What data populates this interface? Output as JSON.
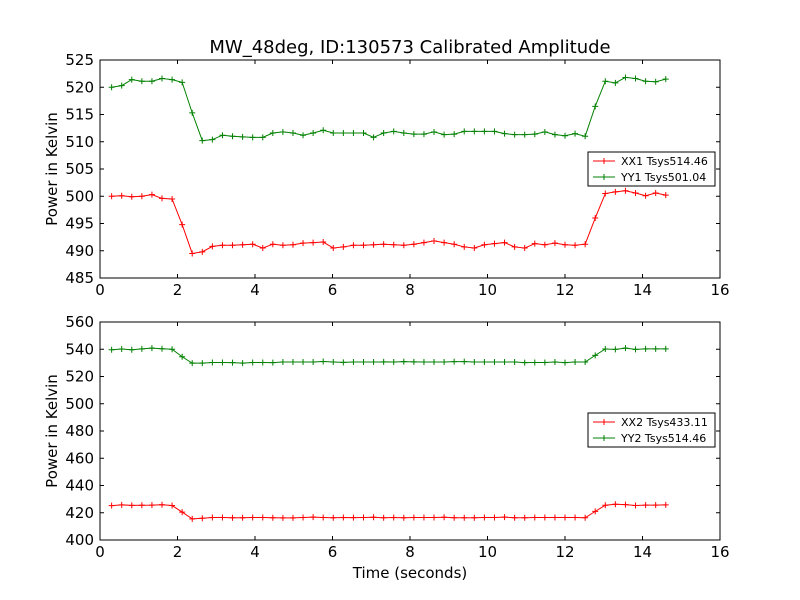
{
  "chart_data": [
    {
      "type": "line",
      "title": "MW_48deg, ID:130573 Calibrated Amplitude",
      "xlabel": "",
      "ylabel": "Power in Kelvin",
      "xlim": [
        0,
        16
      ],
      "ylim": [
        485,
        525
      ],
      "xticks": [
        0,
        2,
        4,
        6,
        8,
        10,
        12,
        14,
        16
      ],
      "yticks": [
        485,
        490,
        495,
        500,
        505,
        510,
        515,
        520,
        525
      ],
      "xtick_labels": [
        "0",
        "2",
        "4",
        "6",
        "8",
        "10",
        "12",
        "14",
        "16"
      ],
      "ytick_labels": [
        "485",
        "490",
        "495",
        "500",
        "505",
        "510",
        "515",
        "520",
        "525"
      ],
      "grid": false,
      "legend_position": "right",
      "x": [
        0.3,
        0.56,
        0.82,
        1.08,
        1.34,
        1.6,
        1.86,
        2.12,
        2.38,
        2.64,
        2.9,
        3.16,
        3.42,
        3.68,
        3.94,
        4.2,
        4.46,
        4.72,
        4.98,
        5.24,
        5.5,
        5.76,
        6.02,
        6.28,
        6.54,
        6.8,
        7.06,
        7.32,
        7.58,
        7.84,
        8.1,
        8.36,
        8.62,
        8.88,
        9.14,
        9.4,
        9.66,
        9.92,
        10.18,
        10.44,
        10.7,
        10.96,
        11.22,
        11.48,
        11.74,
        12.0,
        12.26,
        12.52,
        12.78,
        13.04,
        13.3,
        13.56,
        13.82,
        14.08,
        14.34,
        14.6
      ],
      "series": [
        {
          "name": "XX1 Tsys514.46",
          "color": "#ff0000",
          "values": [
            500.0,
            500.1,
            499.9,
            500.0,
            500.3,
            499.6,
            499.5,
            494.8,
            489.5,
            489.8,
            490.8,
            491.0,
            491.0,
            491.1,
            491.2,
            490.5,
            491.2,
            491.0,
            491.1,
            491.4,
            491.5,
            491.6,
            490.5,
            490.7,
            491.0,
            491.0,
            491.1,
            491.2,
            491.1,
            491.0,
            491.2,
            491.5,
            491.8,
            491.5,
            491.2,
            490.7,
            490.5,
            491.1,
            491.3,
            491.5,
            490.7,
            490.5,
            491.3,
            491.1,
            491.4,
            491.1,
            491.0,
            491.2,
            496.0,
            500.5,
            500.8,
            501.0,
            500.6,
            500.1,
            500.6,
            500.2
          ]
        },
        {
          "name": "YY1 Tsys501.04",
          "color": "#008000",
          "values": [
            520.0,
            520.3,
            521.4,
            521.1,
            521.1,
            521.6,
            521.4,
            520.9,
            515.3,
            510.2,
            510.4,
            511.2,
            511.0,
            510.9,
            510.8,
            510.8,
            511.6,
            511.8,
            511.6,
            511.2,
            511.6,
            512.1,
            511.6,
            511.6,
            511.6,
            511.6,
            510.8,
            511.6,
            511.9,
            511.6,
            511.4,
            511.4,
            511.8,
            511.3,
            511.4,
            511.9,
            511.9,
            511.9,
            511.9,
            511.5,
            511.3,
            511.3,
            511.4,
            511.8,
            511.3,
            511.1,
            511.5,
            511.0,
            516.5,
            521.1,
            520.8,
            521.8,
            521.6,
            521.1,
            521.0,
            521.5
          ]
        }
      ]
    },
    {
      "type": "line",
      "title": "",
      "xlabel": "Time (seconds)",
      "ylabel": "Power in Kelvin",
      "xlim": [
        0,
        16
      ],
      "ylim": [
        400,
        560
      ],
      "xticks": [
        0,
        2,
        4,
        6,
        8,
        10,
        12,
        14,
        16
      ],
      "yticks": [
        400,
        420,
        440,
        460,
        480,
        500,
        520,
        540,
        560
      ],
      "xtick_labels": [
        "0",
        "2",
        "4",
        "6",
        "8",
        "10",
        "12",
        "14",
        "16"
      ],
      "ytick_labels": [
        "400",
        "420",
        "440",
        "460",
        "480",
        "500",
        "520",
        "540",
        "560"
      ],
      "grid": false,
      "legend_position": "right",
      "x": [
        0.3,
        0.56,
        0.82,
        1.08,
        1.34,
        1.6,
        1.86,
        2.12,
        2.38,
        2.64,
        2.9,
        3.16,
        3.42,
        3.68,
        3.94,
        4.2,
        4.46,
        4.72,
        4.98,
        5.24,
        5.5,
        5.76,
        6.02,
        6.28,
        6.54,
        6.8,
        7.06,
        7.32,
        7.58,
        7.84,
        8.1,
        8.36,
        8.62,
        8.88,
        9.14,
        9.4,
        9.66,
        9.92,
        10.18,
        10.44,
        10.7,
        10.96,
        11.22,
        11.48,
        11.74,
        12.0,
        12.26,
        12.52,
        12.78,
        13.04,
        13.3,
        13.56,
        13.82,
        14.08,
        14.34,
        14.6
      ],
      "series": [
        {
          "name": "XX2 Tsys433.11",
          "color": "#ff0000",
          "values": [
            425.2,
            425.8,
            425.4,
            425.5,
            425.6,
            425.9,
            425.3,
            420.5,
            415.5,
            416.0,
            416.5,
            416.5,
            416.3,
            416.3,
            416.5,
            416.5,
            416.3,
            416.2,
            416.2,
            416.5,
            416.8,
            416.5,
            416.3,
            416.5,
            416.4,
            416.5,
            416.7,
            416.3,
            416.5,
            416.3,
            416.5,
            416.5,
            416.5,
            416.7,
            416.3,
            416.3,
            416.3,
            416.5,
            416.5,
            416.8,
            416.3,
            416.3,
            416.5,
            416.5,
            416.5,
            416.5,
            416.5,
            416.3,
            421.0,
            425.5,
            426.2,
            426.0,
            425.3,
            425.6,
            425.6,
            425.8
          ]
        },
        {
          "name": "YY2 Tsys514.46",
          "color": "#008000",
          "values": [
            539.6,
            540.2,
            539.6,
            540.3,
            540.8,
            540.4,
            540.0,
            534.5,
            529.8,
            529.8,
            530.3,
            530.3,
            530.2,
            529.8,
            530.3,
            530.3,
            530.2,
            530.6,
            530.6,
            530.6,
            530.6,
            531.0,
            530.6,
            530.4,
            530.6,
            530.6,
            530.6,
            530.7,
            530.6,
            530.9,
            530.7,
            530.6,
            530.6,
            530.6,
            530.9,
            530.9,
            530.6,
            530.6,
            530.6,
            530.6,
            530.6,
            530.2,
            530.3,
            530.3,
            530.6,
            530.2,
            530.6,
            530.6,
            535.5,
            540.2,
            539.9,
            540.8,
            539.9,
            540.3,
            540.3,
            540.3
          ]
        }
      ]
    }
  ]
}
